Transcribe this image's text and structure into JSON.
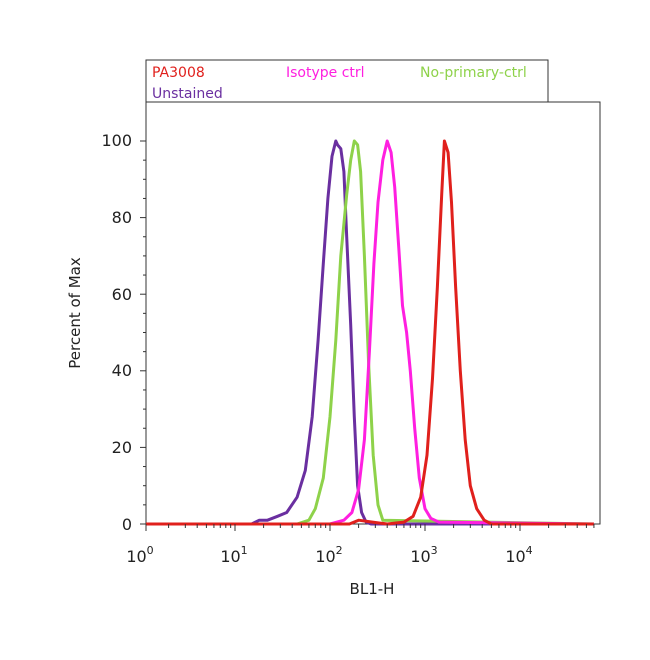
{
  "chart_data": {
    "type": "line",
    "xlabel": "BL1-H",
    "ylabel": "Percent of Max",
    "xscale": "log",
    "xlim": [
      1,
      60000
    ],
    "ylim": [
      0,
      105
    ],
    "y_ticks": [
      "0",
      "20",
      "40",
      "60",
      "80",
      "100"
    ],
    "x_ticks": [
      {
        "base": "10",
        "exp": "0"
      },
      {
        "base": "10",
        "exp": "1"
      },
      {
        "base": "10",
        "exp": "2"
      },
      {
        "base": "10",
        "exp": "3"
      },
      {
        "base": "10",
        "exp": "4"
      }
    ],
    "grid": false,
    "legend_position": "top",
    "legend": [
      {
        "label": "PA3008",
        "color": "#e0201c"
      },
      {
        "label": "Isotype ctrl",
        "color": "#ff1fe0"
      },
      {
        "label": "No-primary-ctrl",
        "color": "#8ed24a"
      },
      {
        "label": "Unstained",
        "color": "#6a2fa0"
      }
    ],
    "series": [
      {
        "name": "Unstained",
        "color": "#6a2fa0",
        "x": [
          1,
          15,
          18,
          22,
          28,
          35,
          45,
          55,
          65,
          75,
          85,
          95,
          105,
          115,
          120,
          130,
          140,
          150,
          165,
          180,
          195,
          215,
          240,
          270,
          60000
        ],
        "y": [
          0,
          0,
          1,
          1,
          2,
          3,
          7,
          14,
          28,
          48,
          68,
          85,
          96,
          100,
          99,
          98,
          92,
          75,
          52,
          28,
          10,
          3,
          0.5,
          0,
          0
        ]
      },
      {
        "name": "No-primary-ctrl",
        "color": "#8ed24a",
        "x": [
          1,
          45,
          60,
          70,
          85,
          100,
          115,
          130,
          150,
          165,
          180,
          195,
          210,
          230,
          255,
          285,
          320,
          360,
          60000
        ],
        "y": [
          0,
          0,
          1,
          4,
          12,
          28,
          48,
          70,
          86,
          95,
          100,
          99,
          92,
          70,
          42,
          18,
          5,
          1,
          0
        ]
      },
      {
        "name": "Isotype ctrl",
        "color": "#ff1fe0",
        "x": [
          1,
          100,
          140,
          170,
          200,
          230,
          260,
          290,
          320,
          360,
          400,
          440,
          480,
          530,
          580,
          640,
          700,
          780,
          870,
          1000,
          1150,
          1400,
          60000
        ],
        "y": [
          0,
          0,
          1,
          3,
          9,
          22,
          45,
          68,
          84,
          95,
          100,
          97,
          88,
          72,
          57,
          50,
          40,
          25,
          12,
          4,
          1.5,
          0.5,
          0
        ]
      },
      {
        "name": "PA3008",
        "color": "#e0201c",
        "x": [
          1,
          160,
          200,
          280,
          400,
          600,
          750,
          900,
          1050,
          1200,
          1350,
          1500,
          1600,
          1750,
          1900,
          2100,
          2350,
          2650,
          3000,
          3500,
          4200,
          5000,
          60000
        ],
        "y": [
          0,
          0,
          1,
          0.5,
          0,
          0.5,
          2,
          7,
          18,
          38,
          62,
          86,
          100,
          97,
          84,
          62,
          40,
          22,
          10,
          4,
          1,
          0,
          0
        ]
      }
    ]
  }
}
